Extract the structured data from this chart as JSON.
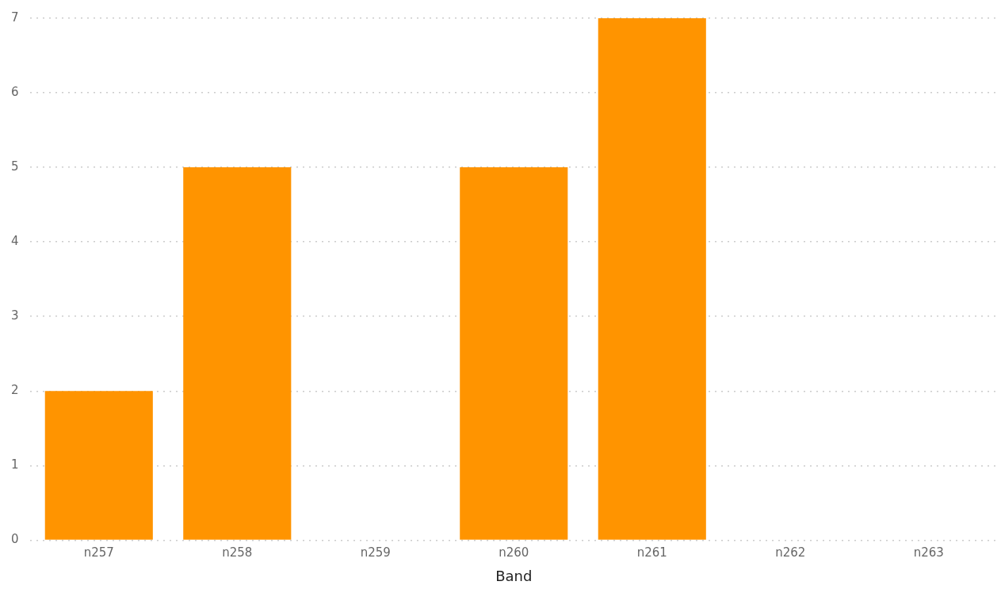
{
  "chart_data": {
    "type": "bar",
    "xlabel": "Band",
    "categories": [
      "n257",
      "n258",
      "n259",
      "n260",
      "n261",
      "n262",
      "n263"
    ],
    "values": [
      2,
      5,
      0,
      5,
      7,
      0,
      0
    ],
    "color": "#ff9400",
    "ylim": [
      0,
      7
    ],
    "yticks": [
      0,
      1,
      2,
      3,
      4,
      5,
      6,
      7
    ],
    "grid": "y"
  }
}
